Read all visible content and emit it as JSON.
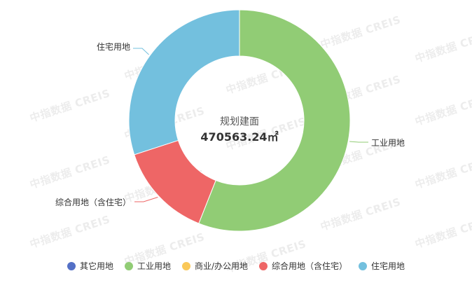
{
  "watermark": "中指数据 CREIS",
  "chart_data": {
    "type": "pie",
    "center_label": "规划建面",
    "center_value": "470563.24㎡",
    "categories": [
      "其它用地",
      "工业用地",
      "商业/办公用地",
      "综合用地（含住宅）",
      "住宅用地"
    ],
    "values": [
      0,
      56,
      0,
      14,
      30
    ],
    "value_unit": "% of total (estimated)",
    "colors": [
      "#5470c6",
      "#91cc75",
      "#fac858",
      "#ee6666",
      "#73c0de"
    ],
    "legend_position": "bottom"
  }
}
